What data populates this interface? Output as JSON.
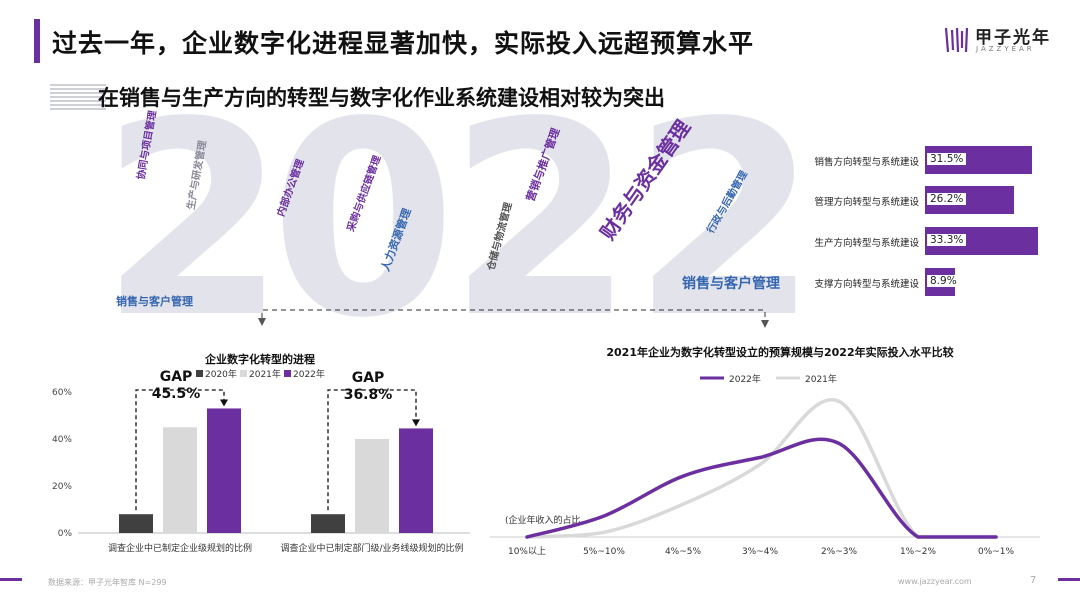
{
  "page": {
    "title": "过去一年，企业数字化进程显著加快，实际投入远超预算水平",
    "subtitle": "在销售与生产方向的转型与数字化作业系统建设相对较为突出",
    "logo_name": "甲子光年",
    "logo_sub": "JAZZYEAR",
    "source": "数据来源：甲子光年智库 N=299",
    "website": "www.jazzyear.com",
    "page_number": "7",
    "accent_color": "#6b2fa0",
    "grey_color": "#d9d9d9",
    "dark_color": "#404040"
  },
  "word_cloud": {
    "digits": [
      "2",
      "0",
      "2",
      "2"
    ],
    "words": [
      "销售与客户管理",
      "财务与资金管理",
      "人力资源管理",
      "营销与推广管理",
      "内部办公管理",
      "生产与研发管理",
      "采购与供应链管理",
      "仓储与物流管理",
      "协同与项目管理",
      "行政与后勤管理"
    ]
  },
  "chart_data": [
    {
      "type": "bar",
      "orientation": "horizontal",
      "categories": [
        "销售方向转型与系统建设",
        "管理方向转型与系统建设",
        "生产方向转型与系统建设",
        "支撑方向转型与系统建设"
      ],
      "values": [
        31.5,
        26.2,
        33.3,
        8.9
      ],
      "value_labels": [
        "31.5%",
        "26.2%",
        "33.3%",
        "8.9%"
      ],
      "color": "#6b2fa0"
    },
    {
      "type": "bar",
      "title": "企业数字化转型的进程",
      "categories": [
        "调查企业中已制定企业级规划的比例",
        "调查企业中已制定部门级/业务线级规划的比例"
      ],
      "series": [
        {
          "name": "2020年",
          "values": [
            8,
            8
          ],
          "color": "#404040"
        },
        {
          "name": "2021年",
          "values": [
            45,
            40
          ],
          "color": "#d9d9d9"
        },
        {
          "name": "2022年",
          "values": [
            53,
            44.5
          ],
          "color": "#6b2fa0"
        }
      ],
      "ylim": [
        0,
        60
      ],
      "yticks": [
        "0%",
        "20%",
        "40%",
        "60%"
      ],
      "ytick_values": [
        0,
        20,
        40,
        60
      ],
      "annotations": [
        {
          "label": "GAP",
          "value": "45.5%"
        },
        {
          "label": "GAP",
          "value": "36.8%"
        }
      ]
    },
    {
      "type": "line",
      "title": "2021年企业为数字化转型设立的预算规模与2022年实际投入水平比较",
      "ylabel": "(企业年收入的占比",
      "categories": [
        "10%以上",
        "5%~10%",
        "4%~5%",
        "3%~4%",
        "2%~3%",
        "1%~2%",
        "0%~1%"
      ],
      "series": [
        {
          "name": "2022年",
          "values": [
            0,
            9,
            26,
            34,
            40,
            0,
            0
          ],
          "color": "#6b2fa0"
        },
        {
          "name": "2021年",
          "values": [
            0,
            2,
            14,
            31,
            58,
            0,
            0
          ],
          "color": "#d9d9d9"
        }
      ],
      "ylim": [
        0,
        65
      ],
      "grid": false,
      "legend": "top"
    }
  ]
}
